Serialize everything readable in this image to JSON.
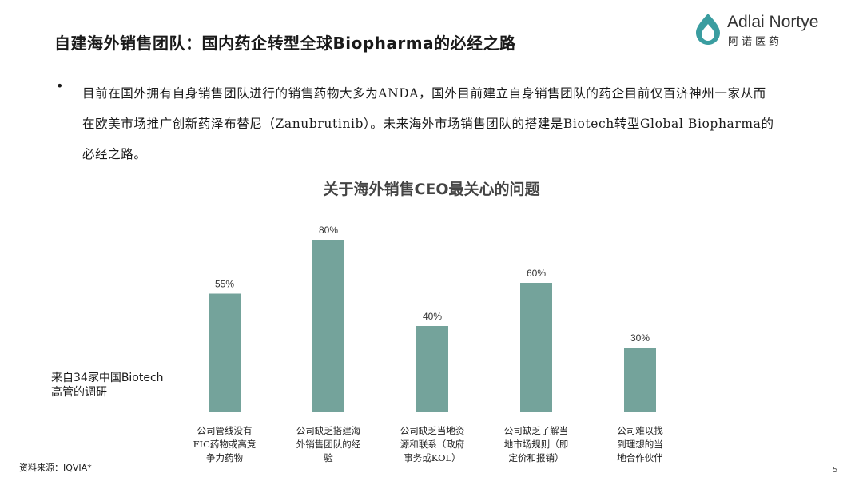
{
  "header": {
    "title": "自建海外销售团队：国内药企转型全球Biopharma的必经之路"
  },
  "logo": {
    "name_en": "Adlai Nortye",
    "name_cn": "阿诺医药",
    "color": "#3a9da0"
  },
  "bullet": {
    "marker": "•",
    "text": "目前在国外拥有自身销售团队进行的销售药物大多为ANDA，国外目前建立自身销售团队的药企目前仅百济神州一家从而在欧美市场推广创新药泽布替尼（Zanubrutinib）。未来海外市场销售团队的搭建是Biotech转型Global Biopharma的必经之路。"
  },
  "chart_data": {
    "type": "bar",
    "title": "关于海外销售CEO最关心的问题",
    "categories": [
      "公司管线没有FIC药物或高竞争力药物",
      "公司缺乏搭建海外销售团队的经验",
      "公司缺乏当地资源和联系（政府事务或KOL）",
      "公司缺乏了解当地市场规则（即定价和报销）",
      "公司难以找到理想的当地合作伙伴"
    ],
    "category_lines": [
      [
        "公司管线没有",
        "FIC药物或高竞",
        "争力药物"
      ],
      [
        "公司缺乏搭建海",
        "外销售团队的经",
        "验"
      ],
      [
        "公司缺乏当地资",
        "源和联系（政府",
        "事务或KOL）"
      ],
      [
        "公司缺乏了解当",
        "地市场规则（即",
        "定价和报销）"
      ],
      [
        "公司难以找",
        "到理想的当",
        "地合作伙伴"
      ]
    ],
    "values": [
      55,
      80,
      40,
      60,
      30
    ],
    "value_labels": [
      "55%",
      "80%",
      "40%",
      "60%",
      "30%"
    ],
    "ylim": [
      0,
      100
    ],
    "bar_color": "#74a39b",
    "grid": false,
    "legend": "none"
  },
  "annotation": {
    "lines": [
      "来自34家中国Biotech",
      "高管的调研"
    ]
  },
  "footer": {
    "source": "资料来源：IQVIA*",
    "page_number": "5"
  }
}
